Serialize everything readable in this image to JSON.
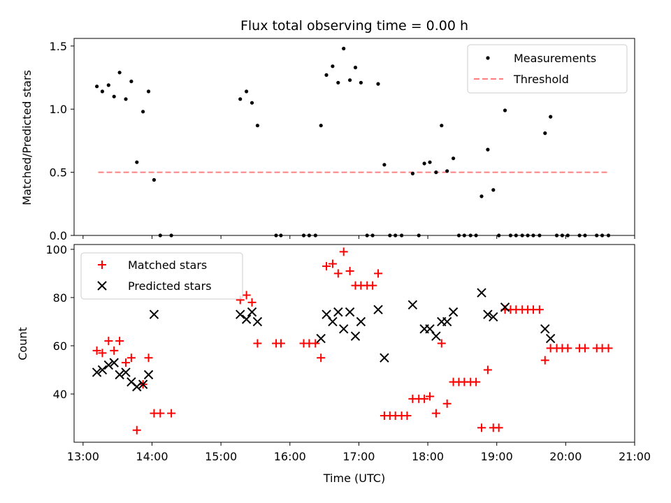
{
  "chart_data": [
    {
      "type": "scatter",
      "title": "Flux total observing time = 0.00 h",
      "xlabel": "",
      "ylabel": "Matched/Predicted stars",
      "xlim": [
        12.87,
        21.0
      ],
      "ylim": [
        0.0,
        1.56
      ],
      "yticks": [
        0.0,
        0.5,
        1.0,
        1.5
      ],
      "ytick_labels": [
        "0.0",
        "0.5",
        "1.0",
        "1.5"
      ],
      "legend": {
        "position": "top-right",
        "entries": [
          "Measurements",
          "Threshold"
        ]
      },
      "colors": {
        "measurements": "#000000",
        "threshold": "#ff7f7f"
      },
      "threshold": {
        "name": "Threshold",
        "y": 0.5,
        "x": [
          13.22,
          20.6
        ]
      },
      "series": [
        {
          "name": "Measurements",
          "x": [
            13.2,
            13.28,
            13.37,
            13.45,
            13.53,
            13.62,
            13.7,
            13.78,
            13.87,
            13.95,
            14.03,
            14.12,
            14.28,
            15.28,
            15.37,
            15.45,
            15.53,
            15.8,
            15.87,
            16.2,
            16.28,
            16.37,
            16.45,
            16.53,
            16.62,
            16.7,
            16.78,
            16.87,
            16.95,
            17.03,
            17.12,
            17.2,
            17.28,
            17.37,
            17.45,
            17.53,
            17.62,
            17.78,
            17.87,
            17.95,
            18.03,
            18.12,
            18.2,
            18.28,
            18.37,
            18.45,
            18.53,
            18.62,
            18.7,
            18.78,
            18.87,
            18.95,
            19.03,
            19.12,
            19.2,
            19.28,
            19.37,
            19.45,
            19.53,
            19.62,
            19.7,
            19.78,
            19.87,
            19.95,
            20.03,
            20.2,
            20.28,
            20.45,
            20.53,
            20.62
          ],
          "y": [
            1.18,
            1.14,
            1.19,
            1.1,
            1.29,
            1.08,
            1.22,
            0.58,
            0.98,
            1.14,
            0.44,
            0.0,
            0.0,
            1.08,
            1.14,
            1.05,
            0.87,
            0.0,
            0.0,
            0.0,
            0.0,
            0.0,
            0.87,
            1.27,
            1.34,
            1.21,
            1.48,
            1.23,
            1.33,
            1.21,
            0.0,
            0.0,
            1.2,
            0.56,
            0.0,
            0.0,
            0.0,
            0.49,
            0.0,
            0.57,
            0.58,
            0.5,
            0.87,
            0.51,
            0.61,
            0.0,
            0.0,
            0.0,
            0.0,
            0.31,
            0.68,
            0.36,
            0.0,
            0.99,
            0.0,
            0.0,
            0.0,
            0.0,
            0.0,
            0.0,
            0.81,
            0.94,
            0.0,
            0.0,
            0.0,
            0.0,
            0.0,
            0.0,
            0.0,
            0.0
          ]
        }
      ]
    },
    {
      "type": "scatter",
      "title": "",
      "xlabel": "Time (UTC)",
      "ylabel": "Count",
      "xlim": [
        12.87,
        21.0
      ],
      "ylim": [
        20,
        102
      ],
      "yticks": [
        40,
        60,
        80,
        100
      ],
      "ytick_labels": [
        "40",
        "60",
        "80",
        "100"
      ],
      "xticks": [
        13,
        14,
        15,
        16,
        17,
        18,
        19,
        20,
        21
      ],
      "xtick_labels": [
        "13:00",
        "14:00",
        "15:00",
        "16:00",
        "17:00",
        "18:00",
        "19:00",
        "20:00",
        "21:00"
      ],
      "legend": {
        "position": "top-left",
        "entries": [
          "Matched stars",
          "Predicted stars"
        ]
      },
      "colors": {
        "matched": "#ff0000",
        "predicted": "#000000"
      },
      "series": [
        {
          "name": "Matched stars",
          "marker": "plus",
          "x": [
            13.2,
            13.28,
            13.37,
            13.45,
            13.53,
            13.62,
            13.7,
            13.78,
            13.87,
            13.95,
            14.03,
            14.12,
            14.28,
            15.28,
            15.37,
            15.45,
            15.53,
            15.8,
            15.87,
            16.2,
            16.28,
            16.37,
            16.45,
            16.53,
            16.62,
            16.7,
            16.78,
            16.87,
            16.95,
            17.03,
            17.12,
            17.2,
            17.28,
            17.37,
            17.45,
            17.53,
            17.62,
            17.7,
            17.78,
            17.87,
            17.95,
            18.03,
            18.12,
            18.2,
            18.28,
            18.37,
            18.45,
            18.53,
            18.62,
            18.7,
            18.78,
            18.87,
            18.95,
            19.03,
            19.12,
            19.2,
            19.28,
            19.37,
            19.45,
            19.53,
            19.62,
            19.7,
            19.78,
            19.87,
            19.95,
            20.03,
            20.2,
            20.28,
            20.45,
            20.53,
            20.62
          ],
          "y": [
            58,
            57,
            62,
            58,
            62,
            53,
            55,
            25,
            44,
            55,
            32,
            32,
            32,
            79,
            81,
            78,
            61,
            61,
            61,
            61,
            61,
            61,
            55,
            93,
            94,
            90,
            99,
            91,
            85,
            85,
            85,
            85,
            90,
            31,
            31,
            31,
            31,
            31,
            38,
            38,
            38,
            39,
            32,
            61,
            36,
            45,
            45,
            45,
            45,
            45,
            26,
            50,
            26,
            26,
            75,
            75,
            75,
            75,
            75,
            75,
            75,
            54,
            59,
            59,
            59,
            59,
            59,
            59,
            59,
            59,
            59
          ]
        },
        {
          "name": "Predicted stars",
          "marker": "x",
          "x": [
            13.2,
            13.28,
            13.37,
            13.45,
            13.53,
            13.62,
            13.7,
            13.78,
            13.87,
            13.95,
            14.03,
            15.28,
            15.37,
            15.45,
            15.53,
            16.45,
            16.53,
            16.62,
            16.7,
            16.78,
            16.87,
            16.95,
            17.03,
            17.28,
            17.37,
            17.78,
            17.95,
            18.03,
            18.12,
            18.2,
            18.28,
            18.37,
            18.78,
            18.87,
            18.95,
            19.12,
            19.7,
            19.78
          ],
          "y": [
            49,
            50,
            52,
            53,
            48,
            49,
            45,
            43,
            44,
            48,
            73,
            73,
            71,
            74,
            70,
            63,
            73,
            70,
            74,
            67,
            74,
            64,
            70,
            75,
            55,
            77,
            67,
            67,
            64,
            70,
            70,
            74,
            82,
            73,
            72,
            76,
            67,
            63
          ]
        }
      ]
    }
  ]
}
